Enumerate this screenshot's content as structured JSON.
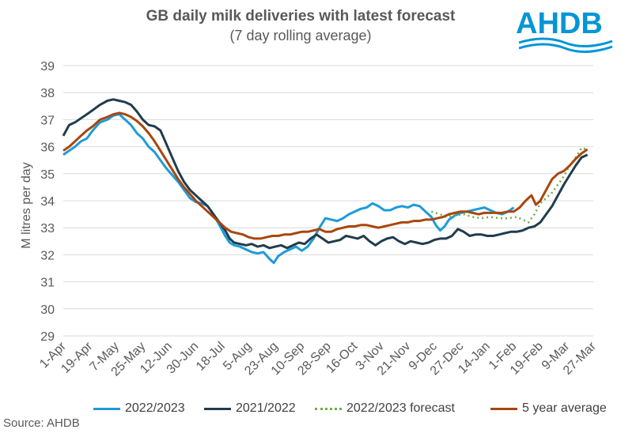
{
  "header": {
    "title": "GB daily milk deliveries with latest forecast",
    "subtitle": "(7 day rolling average)"
  },
  "logo": {
    "text": "AHDB",
    "color": "#0096d6"
  },
  "source": "Source: AHDB",
  "chart_data": {
    "type": "line",
    "ylabel": "M litres per day",
    "ylim": [
      29,
      39
    ],
    "yticks": [
      "29",
      "30",
      "31",
      "32",
      "33",
      "34",
      "35",
      "36",
      "37",
      "38",
      "39"
    ],
    "xticks": [
      "1-Apr",
      "19-Apr",
      "7-May",
      "25-May",
      "12-Jun",
      "30-Jun",
      "18-Jul",
      "5-Aug",
      "23-Aug",
      "10-Sep",
      "28-Sep",
      "16-Oct",
      "3-Nov",
      "21-Nov",
      "9-Dec",
      "27-Dec",
      "14-Jan",
      "1-Feb",
      "19-Feb",
      "9-Mar",
      "27-Mar"
    ],
    "x_units": "days since 1-Apr",
    "grid": true,
    "legend_position": "bottom",
    "series": [
      {
        "name": "2022/2023",
        "color": "#1e9bd7",
        "dash": "solid",
        "points": [
          [
            0,
            35.7
          ],
          [
            4,
            35.85
          ],
          [
            8,
            36.0
          ],
          [
            12,
            36.2
          ],
          [
            16,
            36.3
          ],
          [
            20,
            36.6
          ],
          [
            25,
            36.9
          ],
          [
            30,
            37.0
          ],
          [
            34,
            37.15
          ],
          [
            38,
            37.2
          ],
          [
            42,
            37.0
          ],
          [
            46,
            36.8
          ],
          [
            50,
            36.5
          ],
          [
            54,
            36.3
          ],
          [
            58,
            36.0
          ],
          [
            62,
            35.8
          ],
          [
            66,
            35.5
          ],
          [
            70,
            35.2
          ],
          [
            74,
            34.95
          ],
          [
            78,
            34.7
          ],
          [
            82,
            34.4
          ],
          [
            86,
            34.1
          ],
          [
            90,
            33.95
          ],
          [
            94,
            33.9
          ],
          [
            98,
            33.8
          ],
          [
            102,
            33.5
          ],
          [
            106,
            33.1
          ],
          [
            110,
            32.7
          ],
          [
            113,
            32.45
          ],
          [
            116,
            32.35
          ],
          [
            120,
            32.3
          ],
          [
            124,
            32.2
          ],
          [
            128,
            32.1
          ],
          [
            132,
            32.05
          ],
          [
            136,
            32.1
          ],
          [
            140,
            31.85
          ],
          [
            143,
            31.7
          ],
          [
            146,
            31.95
          ],
          [
            150,
            32.1
          ],
          [
            154,
            32.2
          ],
          [
            158,
            32.3
          ],
          [
            162,
            32.15
          ],
          [
            166,
            32.3
          ],
          [
            170,
            32.6
          ],
          [
            174,
            33.0
          ],
          [
            178,
            33.35
          ],
          [
            182,
            33.3
          ],
          [
            186,
            33.25
          ],
          [
            190,
            33.35
          ],
          [
            194,
            33.5
          ],
          [
            198,
            33.6
          ],
          [
            202,
            33.7
          ],
          [
            206,
            33.75
          ],
          [
            210,
            33.9
          ],
          [
            214,
            33.8
          ],
          [
            218,
            33.65
          ],
          [
            222,
            33.65
          ],
          [
            226,
            33.75
          ],
          [
            230,
            33.8
          ],
          [
            234,
            33.75
          ],
          [
            238,
            33.85
          ],
          [
            242,
            33.8
          ],
          [
            246,
            33.6
          ],
          [
            250,
            33.4
          ],
          [
            253,
            33.1
          ],
          [
            256,
            32.9
          ],
          [
            259,
            33.05
          ],
          [
            262,
            33.3
          ],
          [
            266,
            33.45
          ],
          [
            270,
            33.55
          ],
          [
            274,
            33.6
          ],
          [
            278,
            33.65
          ],
          [
            282,
            33.7
          ],
          [
            286,
            33.75
          ],
          [
            290,
            33.65
          ],
          [
            294,
            33.55
          ],
          [
            298,
            33.5
          ],
          [
            302,
            33.6
          ],
          [
            306,
            33.75
          ]
        ]
      },
      {
        "name": "2021/2022",
        "color": "#213c4e",
        "dash": "solid",
        "points": [
          [
            0,
            36.4
          ],
          [
            4,
            36.8
          ],
          [
            8,
            36.9
          ],
          [
            12,
            37.05
          ],
          [
            16,
            37.2
          ],
          [
            20,
            37.35
          ],
          [
            25,
            37.55
          ],
          [
            30,
            37.7
          ],
          [
            34,
            37.75
          ],
          [
            38,
            37.7
          ],
          [
            42,
            37.65
          ],
          [
            46,
            37.55
          ],
          [
            50,
            37.3
          ],
          [
            54,
            37.0
          ],
          [
            58,
            36.8
          ],
          [
            62,
            36.75
          ],
          [
            66,
            36.6
          ],
          [
            70,
            36.1
          ],
          [
            74,
            35.6
          ],
          [
            78,
            35.1
          ],
          [
            82,
            34.7
          ],
          [
            86,
            34.4
          ],
          [
            90,
            34.2
          ],
          [
            94,
            34.0
          ],
          [
            98,
            33.8
          ],
          [
            102,
            33.5
          ],
          [
            106,
            33.2
          ],
          [
            110,
            32.9
          ],
          [
            113,
            32.6
          ],
          [
            116,
            32.45
          ],
          [
            120,
            32.4
          ],
          [
            124,
            32.35
          ],
          [
            128,
            32.4
          ],
          [
            132,
            32.3
          ],
          [
            136,
            32.35
          ],
          [
            140,
            32.25
          ],
          [
            144,
            32.3
          ],
          [
            148,
            32.35
          ],
          [
            152,
            32.25
          ],
          [
            156,
            32.35
          ],
          [
            160,
            32.45
          ],
          [
            164,
            32.4
          ],
          [
            168,
            32.6
          ],
          [
            172,
            32.75
          ],
          [
            176,
            32.6
          ],
          [
            180,
            32.45
          ],
          [
            184,
            32.5
          ],
          [
            188,
            32.55
          ],
          [
            192,
            32.7
          ],
          [
            196,
            32.65
          ],
          [
            200,
            32.6
          ],
          [
            204,
            32.7
          ],
          [
            208,
            32.5
          ],
          [
            212,
            32.35
          ],
          [
            216,
            32.5
          ],
          [
            220,
            32.6
          ],
          [
            224,
            32.65
          ],
          [
            228,
            32.5
          ],
          [
            232,
            32.4
          ],
          [
            236,
            32.5
          ],
          [
            240,
            32.45
          ],
          [
            244,
            32.4
          ],
          [
            248,
            32.45
          ],
          [
            252,
            32.55
          ],
          [
            256,
            32.6
          ],
          [
            260,
            32.6
          ],
          [
            264,
            32.7
          ],
          [
            268,
            32.95
          ],
          [
            272,
            32.85
          ],
          [
            276,
            32.7
          ],
          [
            280,
            32.75
          ],
          [
            284,
            32.75
          ],
          [
            288,
            32.7
          ],
          [
            292,
            32.7
          ],
          [
            296,
            32.75
          ],
          [
            300,
            32.8
          ],
          [
            304,
            32.85
          ],
          [
            308,
            32.85
          ],
          [
            312,
            32.9
          ],
          [
            316,
            33.0
          ],
          [
            320,
            33.05
          ],
          [
            324,
            33.2
          ],
          [
            328,
            33.5
          ],
          [
            332,
            33.8
          ],
          [
            336,
            34.2
          ],
          [
            340,
            34.6
          ],
          [
            344,
            34.95
          ],
          [
            348,
            35.3
          ],
          [
            352,
            35.6
          ],
          [
            356,
            35.7
          ]
        ]
      },
      {
        "name": "2022/2023 forecast",
        "color": "#70ad47",
        "dash": "dotted",
        "points": [
          [
            250,
            33.6
          ],
          [
            256,
            33.5
          ],
          [
            260,
            33.4
          ],
          [
            266,
            33.45
          ],
          [
            272,
            33.5
          ],
          [
            278,
            33.4
          ],
          [
            284,
            33.35
          ],
          [
            290,
            33.4
          ],
          [
            296,
            33.35
          ],
          [
            302,
            33.35
          ],
          [
            308,
            33.4
          ],
          [
            312,
            33.3
          ],
          [
            316,
            33.2
          ],
          [
            320,
            33.5
          ],
          [
            324,
            33.9
          ],
          [
            328,
            34.1
          ],
          [
            332,
            34.3
          ],
          [
            336,
            34.6
          ],
          [
            340,
            34.9
          ],
          [
            344,
            35.3
          ],
          [
            348,
            35.6
          ],
          [
            352,
            35.95
          ],
          [
            356,
            35.9
          ]
        ]
      },
      {
        "name": "5 year average",
        "color": "#a8470e",
        "dash": "solid",
        "points": [
          [
            0,
            35.85
          ],
          [
            4,
            36.0
          ],
          [
            8,
            36.2
          ],
          [
            12,
            36.4
          ],
          [
            16,
            36.6
          ],
          [
            20,
            36.75
          ],
          [
            25,
            37.0
          ],
          [
            30,
            37.1
          ],
          [
            34,
            37.2
          ],
          [
            38,
            37.25
          ],
          [
            42,
            37.2
          ],
          [
            46,
            37.1
          ],
          [
            50,
            36.95
          ],
          [
            54,
            36.75
          ],
          [
            58,
            36.5
          ],
          [
            62,
            36.2
          ],
          [
            66,
            35.85
          ],
          [
            70,
            35.5
          ],
          [
            74,
            35.15
          ],
          [
            78,
            34.8
          ],
          [
            82,
            34.5
          ],
          [
            86,
            34.25
          ],
          [
            90,
            34.0
          ],
          [
            94,
            33.8
          ],
          [
            98,
            33.6
          ],
          [
            102,
            33.4
          ],
          [
            106,
            33.2
          ],
          [
            110,
            33.0
          ],
          [
            114,
            32.85
          ],
          [
            118,
            32.8
          ],
          [
            122,
            32.75
          ],
          [
            126,
            32.65
          ],
          [
            130,
            32.6
          ],
          [
            134,
            32.6
          ],
          [
            138,
            32.65
          ],
          [
            142,
            32.7
          ],
          [
            146,
            32.7
          ],
          [
            150,
            32.75
          ],
          [
            154,
            32.75
          ],
          [
            158,
            32.8
          ],
          [
            162,
            32.85
          ],
          [
            166,
            32.85
          ],
          [
            170,
            32.9
          ],
          [
            174,
            32.95
          ],
          [
            178,
            32.85
          ],
          [
            182,
            32.85
          ],
          [
            186,
            32.95
          ],
          [
            190,
            33.0
          ],
          [
            194,
            33.05
          ],
          [
            198,
            33.05
          ],
          [
            202,
            33.1
          ],
          [
            206,
            33.1
          ],
          [
            210,
            33.05
          ],
          [
            214,
            33.0
          ],
          [
            218,
            33.05
          ],
          [
            222,
            33.1
          ],
          [
            226,
            33.15
          ],
          [
            230,
            33.2
          ],
          [
            234,
            33.2
          ],
          [
            238,
            33.25
          ],
          [
            242,
            33.25
          ],
          [
            246,
            33.3
          ],
          [
            250,
            33.3
          ],
          [
            254,
            33.35
          ],
          [
            258,
            33.4
          ],
          [
            262,
            33.5
          ],
          [
            266,
            33.55
          ],
          [
            270,
            33.6
          ],
          [
            274,
            33.6
          ],
          [
            278,
            33.55
          ],
          [
            282,
            33.5
          ],
          [
            286,
            33.55
          ],
          [
            290,
            33.55
          ],
          [
            294,
            33.55
          ],
          [
            298,
            33.55
          ],
          [
            302,
            33.6
          ],
          [
            306,
            33.6
          ],
          [
            310,
            33.75
          ],
          [
            314,
            34.0
          ],
          [
            318,
            34.2
          ],
          [
            321,
            33.85
          ],
          [
            324,
            34.0
          ],
          [
            328,
            34.4
          ],
          [
            332,
            34.8
          ],
          [
            336,
            35.0
          ],
          [
            340,
            35.1
          ],
          [
            344,
            35.3
          ],
          [
            348,
            35.55
          ],
          [
            352,
            35.75
          ],
          [
            356,
            35.9
          ]
        ]
      }
    ]
  }
}
